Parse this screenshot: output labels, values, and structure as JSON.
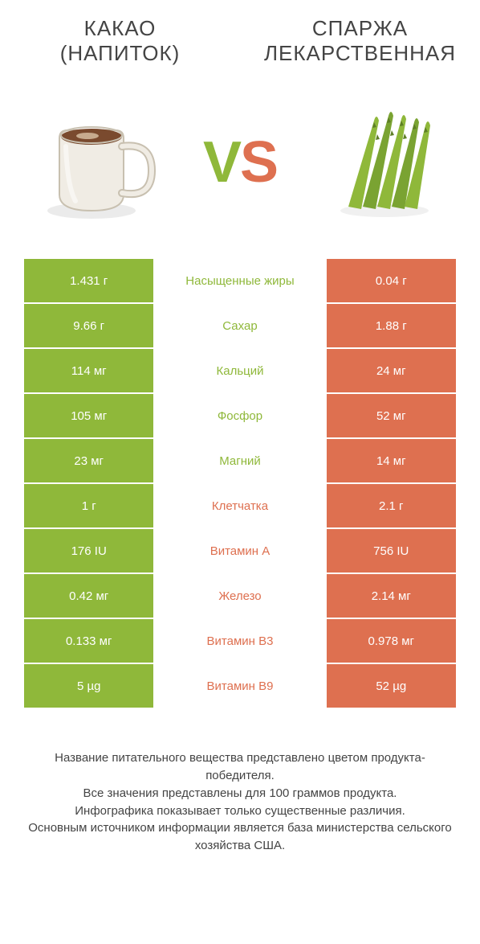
{
  "left_title": "КАКАО\n(НАПИТОК)",
  "right_title": "СПАРЖА\nЛЕКАРСТВЕННАЯ",
  "vs_v": "V",
  "vs_s": "S",
  "colors": {
    "left": "#8fb83a",
    "right": "#de7050",
    "bg": "#ffffff",
    "text": "#444444"
  },
  "rows": [
    {
      "left": "1.431 г",
      "label": "Насыщенные жиры",
      "right": "0.04 г",
      "winner": "left"
    },
    {
      "left": "9.66 г",
      "label": "Сахар",
      "right": "1.88 г",
      "winner": "left"
    },
    {
      "left": "114 мг",
      "label": "Кальций",
      "right": "24 мг",
      "winner": "left"
    },
    {
      "left": "105 мг",
      "label": "Фосфор",
      "right": "52 мг",
      "winner": "left"
    },
    {
      "left": "23 мг",
      "label": "Магний",
      "right": "14 мг",
      "winner": "left"
    },
    {
      "left": "1 г",
      "label": "Клетчатка",
      "right": "2.1 г",
      "winner": "right"
    },
    {
      "left": "176 IU",
      "label": "Витамин A",
      "right": "756 IU",
      "winner": "right"
    },
    {
      "left": "0.42 мг",
      "label": "Железо",
      "right": "2.14 мг",
      "winner": "right"
    },
    {
      "left": "0.133 мг",
      "label": "Витамин B3",
      "right": "0.978 мг",
      "winner": "right"
    },
    {
      "left": "5 µg",
      "label": "Витамин B9",
      "right": "52 µg",
      "winner": "right"
    }
  ],
  "footer_lines": [
    "Название питательного вещества представлено цветом продукта-победителя.",
    "Все значения представлены для 100 граммов продукта.",
    "Инфографика показывает только существенные различия.",
    "Основным источником информации является база министерства сельского хозяйства США."
  ]
}
